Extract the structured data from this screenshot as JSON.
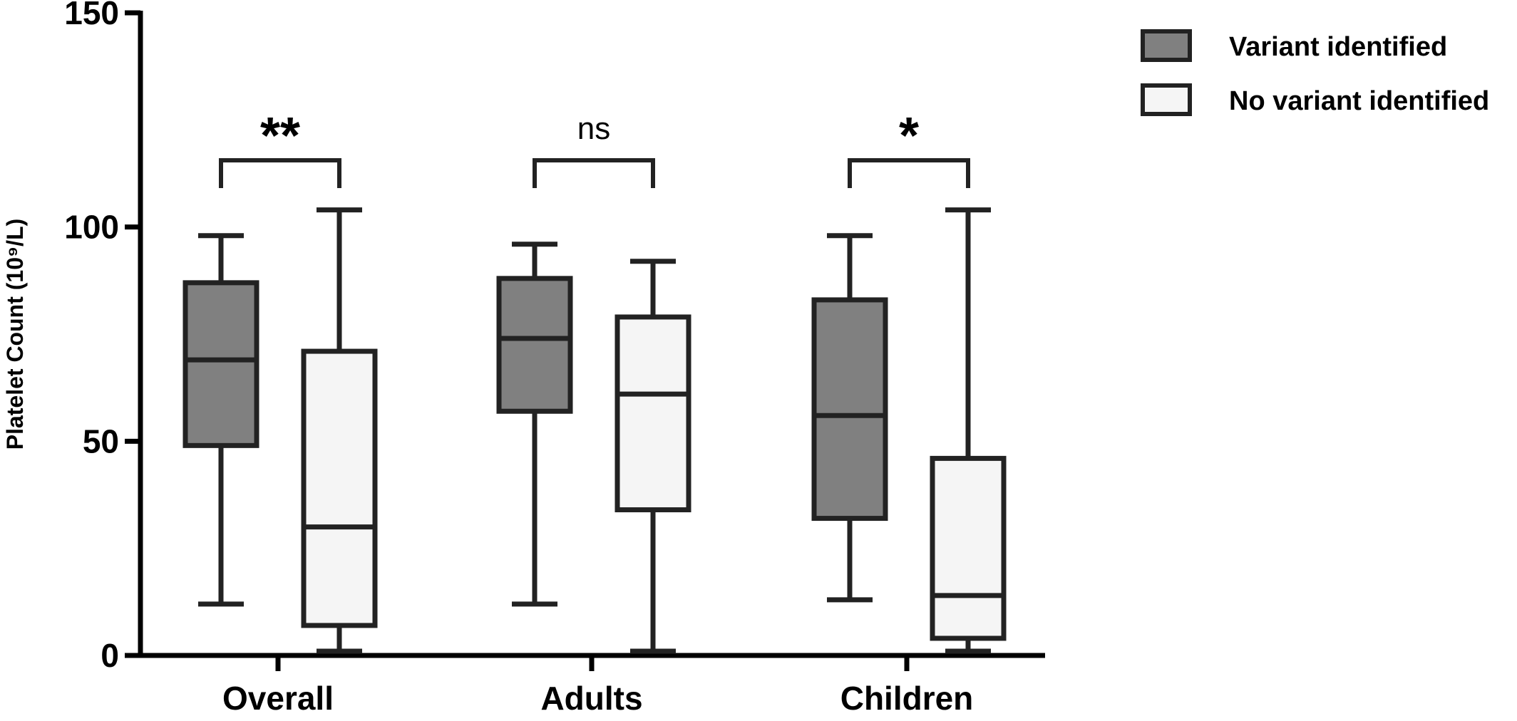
{
  "chart_data": {
    "type": "box",
    "ylabel": "Platelet Count (10⁹/L)",
    "ylim": [
      0,
      150
    ],
    "yticks": [
      "0",
      "50",
      "100",
      "150"
    ],
    "categories": [
      "Overall",
      "Adults",
      "Children"
    ],
    "series": [
      {
        "name": "Variant identified",
        "color": "#808080",
        "boxes": [
          {
            "min": 12,
            "q1": 49,
            "median": 69,
            "q3": 87,
            "max": 98
          },
          {
            "min": 12,
            "q1": 57,
            "median": 74,
            "q3": 88,
            "max": 96
          },
          {
            "min": 13,
            "q1": 32,
            "median": 56,
            "q3": 83,
            "max": 98
          }
        ]
      },
      {
        "name": "No variant identified",
        "color": "#f5f5f5",
        "boxes": [
          {
            "min": 1,
            "q1": 7,
            "median": 30,
            "q3": 71,
            "max": 104
          },
          {
            "min": 1,
            "q1": 34,
            "median": 61,
            "q3": 79,
            "max": 92
          },
          {
            "min": 1,
            "q1": 4,
            "median": 14,
            "q3": 46,
            "max": 104
          }
        ]
      }
    ],
    "significance": [
      "**",
      "ns",
      "*"
    ],
    "legend_position": "top-right"
  }
}
